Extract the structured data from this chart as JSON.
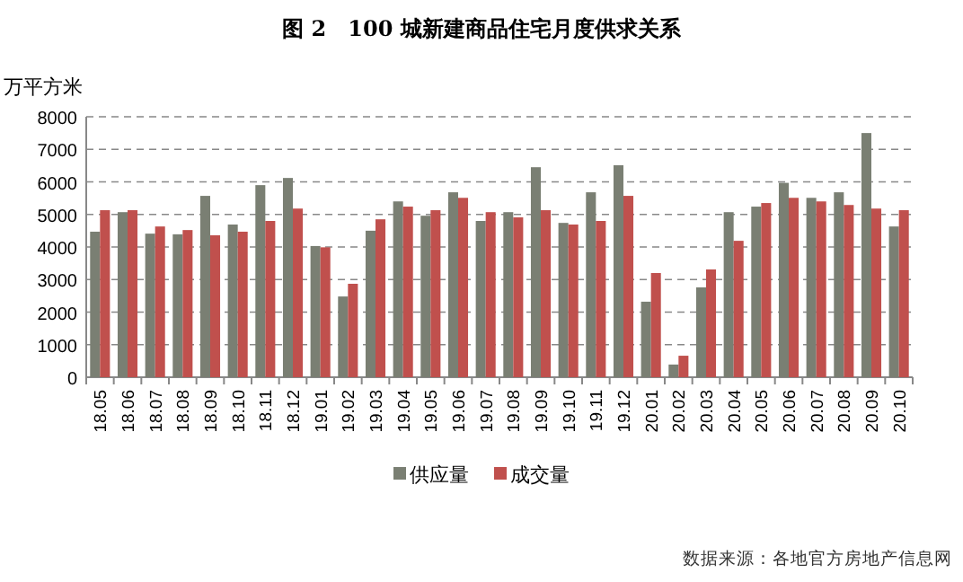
{
  "chart_data": {
    "type": "bar",
    "title": "图 2　100 城新建商品住宅月度供求关系",
    "ylabel": "万平方米",
    "categories": [
      "18.05",
      "18.06",
      "18.07",
      "18.08",
      "18.09",
      "18.10",
      "18.11",
      "18.12",
      "19.01",
      "19.02",
      "19.03",
      "19.04",
      "19.05",
      "19.06",
      "19.07",
      "19.08",
      "19.09",
      "19.10",
      "19.11",
      "19.12",
      "20.01",
      "20.02",
      "20.03",
      "20.04",
      "20.05",
      "20.06",
      "20.07",
      "20.08",
      "20.09",
      "20.10"
    ],
    "series": [
      {
        "name": "供应量",
        "color": "#7a7f73",
        "values": [
          4470,
          5070,
          4410,
          4390,
          5570,
          4690,
          5900,
          6120,
          4030,
          2480,
          4500,
          5400,
          4960,
          5680,
          4800,
          5070,
          6450,
          4740,
          5680,
          6510,
          2320,
          390,
          2760,
          5070,
          5240,
          5970,
          5510,
          5680,
          7500,
          4630
        ]
      },
      {
        "name": "成交量",
        "color": "#c0504d",
        "values": [
          5130,
          5130,
          4630,
          4520,
          4360,
          4470,
          4800,
          5180,
          3990,
          2870,
          4850,
          5240,
          5130,
          5510,
          5070,
          4910,
          5130,
          4690,
          4800,
          5570,
          3200,
          660,
          3310,
          4190,
          5350,
          5510,
          5400,
          5290,
          5180,
          5130
        ]
      }
    ],
    "ylim": [
      0,
      8000
    ],
    "yticks": [
      0,
      1000,
      2000,
      3000,
      4000,
      5000,
      6000,
      7000,
      8000
    ],
    "grid": "y",
    "legend": "bottom",
    "annotations": [
      "数据来源：各地官方房地产信息网"
    ]
  }
}
